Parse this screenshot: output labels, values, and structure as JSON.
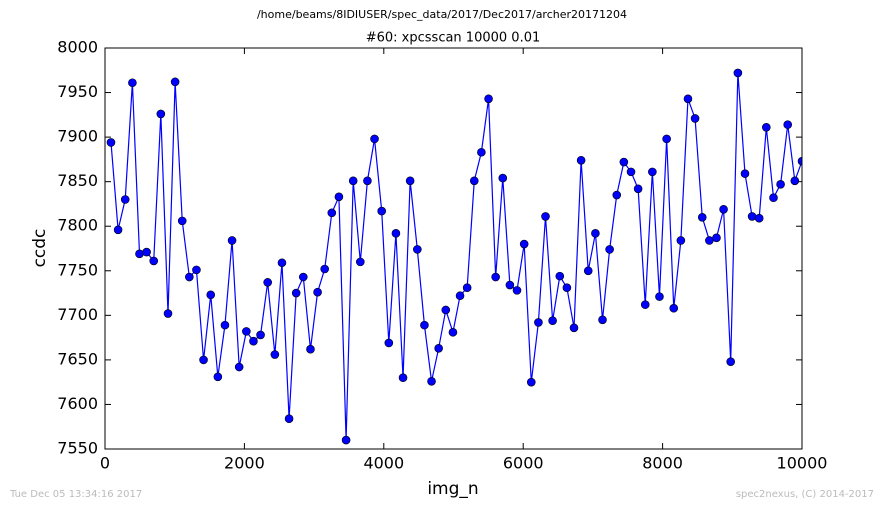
{
  "chart_data": {
    "type": "line",
    "suptitle": "/home/beams/8IDIUSER/spec_data/2017/Dec2017/archer20171204",
    "title": "#60: xpcsscan 10000 0.01",
    "xlabel": "img_n",
    "ylabel": "ccdc",
    "footer_left": "Tue Dec 05 13:34:16 2017",
    "footer_right": "spec2nexus, (C) 2014-2017",
    "xlim": [
      0,
      10000
    ],
    "xticks": [
      0,
      2000,
      4000,
      6000,
      8000,
      10000
    ],
    "ylim": [
      7550,
      8000
    ],
    "yticks": [
      7550,
      7600,
      7650,
      7700,
      7750,
      7800,
      7850,
      7900,
      7950,
      8000
    ],
    "grid": false,
    "series": [
      {
        "color": "#0000ff",
        "x": [
          86,
          188,
          290,
          393,
          495,
          597,
          699,
          801,
          904,
          1006,
          1108,
          1210,
          1312,
          1414,
          1517,
          1619,
          1721,
          1823,
          1925,
          2028,
          2130,
          2232,
          2334,
          2437,
          2539,
          2641,
          2743,
          2845,
          2948,
          3050,
          3152,
          3254,
          3356,
          3459,
          3561,
          3663,
          3765,
          3867,
          3970,
          4072,
          4174,
          4276,
          4378,
          4481,
          4583,
          4685,
          4787,
          4889,
          4992,
          5094,
          5196,
          5298,
          5400,
          5503,
          5605,
          5707,
          5809,
          5911,
          6014,
          6116,
          6218,
          6320,
          6422,
          6525,
          6627,
          6729,
          6831,
          6933,
          7036,
          7138,
          7240,
          7342,
          7444,
          7547,
          7649,
          7751,
          7853,
          7955,
          8058,
          8160,
          8262,
          8364,
          8466,
          8569,
          8671,
          8773,
          8875,
          8977,
          9080,
          9182,
          9284,
          9386,
          9488,
          9591,
          9693,
          9795,
          9897,
          10000
        ],
        "values": [
          7894,
          7796,
          7830,
          7961,
          7769,
          7771,
          7761,
          7926,
          7702,
          7962,
          7806,
          7743,
          7751,
          7650,
          7723,
          7631,
          7689,
          7784,
          7642,
          7682,
          7671,
          7678,
          7737,
          7656,
          7759,
          7584,
          7725,
          7743,
          7662,
          7726,
          7752,
          7815,
          7833,
          7560,
          7851,
          7760,
          7851,
          7898,
          7817,
          7669,
          7792,
          7630,
          7851,
          7774,
          7689,
          7626,
          7663,
          7706,
          7681,
          7722,
          7731,
          7851,
          7883,
          7943,
          7743,
          7854,
          7734,
          7728,
          7780,
          7625,
          7692,
          7811,
          7694,
          7744,
          7731,
          7686,
          7874,
          7750,
          7792,
          7695,
          7774,
          7835,
          7872,
          7861,
          7842,
          7712,
          7861,
          7721,
          7898,
          7708,
          7784,
          7943,
          7921,
          7810,
          7784,
          7787,
          7819,
          7648,
          7972,
          7859,
          7811,
          7809,
          7911,
          7832,
          7847,
          7914,
          7851,
          7873
        ]
      }
    ]
  }
}
